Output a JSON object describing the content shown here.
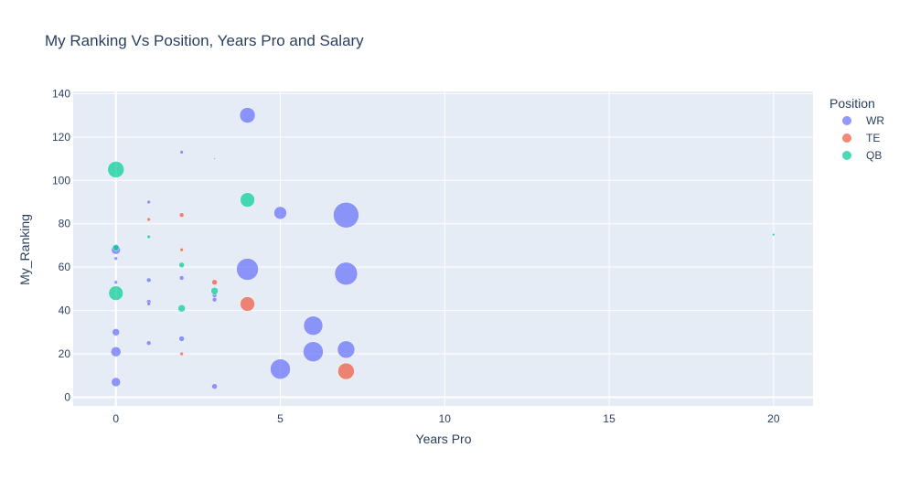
{
  "chart_data": {
    "type": "scatter",
    "title": "My Ranking Vs Position, Years Pro and Salary",
    "xlabel": "Years Pro",
    "ylabel": "My_Ranking",
    "xlim": [
      -1.3,
      21.2
    ],
    "ylim": [
      -4,
      141
    ],
    "xticks": [
      0,
      5,
      10,
      15,
      20
    ],
    "yticks": [
      0,
      20,
      40,
      60,
      80,
      100,
      120,
      140
    ],
    "grid": true,
    "legend": {
      "title": "Position",
      "placement": "right"
    },
    "series": [
      {
        "name": "WR",
        "color": "#636efa",
        "points": [
          {
            "x": 4,
            "y": 130,
            "size": 17
          },
          {
            "x": 2,
            "y": 113,
            "size": 4
          },
          {
            "x": 3,
            "y": 110,
            "size": 2
          },
          {
            "x": 1,
            "y": 90,
            "size": 4
          },
          {
            "x": 5,
            "y": 85,
            "size": 14
          },
          {
            "x": 7,
            "y": 84,
            "size": 28
          },
          {
            "x": 0,
            "y": 68,
            "size": 10
          },
          {
            "x": 0,
            "y": 64,
            "size": 4
          },
          {
            "x": 4,
            "y": 59,
            "size": 24
          },
          {
            "x": 7,
            "y": 57,
            "size": 25
          },
          {
            "x": 2,
            "y": 55,
            "size": 5
          },
          {
            "x": 1,
            "y": 54,
            "size": 5
          },
          {
            "x": 0,
            "y": 53,
            "size": 4
          },
          {
            "x": 3,
            "y": 47,
            "size": 5
          },
          {
            "x": 3,
            "y": 45,
            "size": 5
          },
          {
            "x": 1,
            "y": 44,
            "size": 5
          },
          {
            "x": 1,
            "y": 43,
            "size": 4
          },
          {
            "x": 6,
            "y": 33,
            "size": 21
          },
          {
            "x": 0,
            "y": 30,
            "size": 8
          },
          {
            "x": 2,
            "y": 27,
            "size": 6
          },
          {
            "x": 1,
            "y": 25,
            "size": 5
          },
          {
            "x": 7,
            "y": 22,
            "size": 19
          },
          {
            "x": 0,
            "y": 21,
            "size": 11
          },
          {
            "x": 6,
            "y": 21,
            "size": 22
          },
          {
            "x": 5,
            "y": 13,
            "size": 22
          },
          {
            "x": 0,
            "y": 7,
            "size": 10
          },
          {
            "x": 3,
            "y": 5,
            "size": 6
          }
        ]
      },
      {
        "name": "TE",
        "color": "#ef553b",
        "points": [
          {
            "x": 2,
            "y": 84,
            "size": 5
          },
          {
            "x": 1,
            "y": 82,
            "size": 4
          },
          {
            "x": 2,
            "y": 68,
            "size": 4
          },
          {
            "x": 3,
            "y": 53,
            "size": 6
          },
          {
            "x": 4,
            "y": 43,
            "size": 16
          },
          {
            "x": 2,
            "y": 20,
            "size": 4
          },
          {
            "x": 7,
            "y": 12,
            "size": 18
          }
        ]
      },
      {
        "name": "QB",
        "color": "#00cc96",
        "points": [
          {
            "x": 0,
            "y": 105,
            "size": 18
          },
          {
            "x": 4,
            "y": 91,
            "size": 16
          },
          {
            "x": 1,
            "y": 74,
            "size": 4
          },
          {
            "x": 20,
            "y": 75,
            "size": 3
          },
          {
            "x": 0,
            "y": 69,
            "size": 7
          },
          {
            "x": 2,
            "y": 61,
            "size": 6
          },
          {
            "x": 3,
            "y": 49,
            "size": 8
          },
          {
            "x": 0,
            "y": 48,
            "size": 16
          },
          {
            "x": 2,
            "y": 41,
            "size": 8
          }
        ]
      }
    ]
  }
}
